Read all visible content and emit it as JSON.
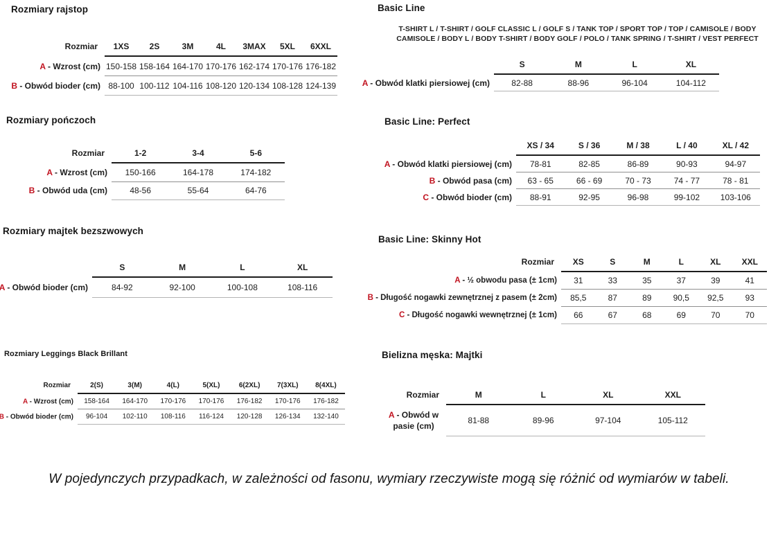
{
  "colors": {
    "accent_red": "#c11320"
  },
  "sections": {
    "rajstop": {
      "title": "Rozmiary rajstop",
      "table": {
        "corner": "Rozmiar",
        "columns": [
          "1XS",
          "2S",
          "3M",
          "4L",
          "3MAX",
          "5XL",
          "6XXL"
        ],
        "rows": [
          {
            "letter": "A",
            "label": "Wzrost (cm)",
            "values": [
              "150-158",
              "158-164",
              "164-170",
              "170-176",
              "162-174",
              "170-176",
              "176-182"
            ]
          },
          {
            "letter": "B",
            "label": "Obwód bioder (cm)",
            "values": [
              "88-100",
              "100-112",
              "104-116",
              "108-120",
              "120-134",
              "108-128",
              "124-139"
            ]
          }
        ]
      }
    },
    "ponczochy": {
      "title": "Rozmiary pończoch",
      "table": {
        "corner": "Rozmiar",
        "columns": [
          "1-2",
          "3-4",
          "5-6"
        ],
        "rows": [
          {
            "letter": "A",
            "label": "Wzrost (cm)",
            "values": [
              "150-166",
              "164-178",
              "174-182"
            ]
          },
          {
            "letter": "B",
            "label": "Obwód uda (cm)",
            "values": [
              "48-56",
              "55-64",
              "64-76"
            ]
          }
        ]
      }
    },
    "majtki_bezszwowe": {
      "title": "Rozmiary majtek bezszwowych",
      "table": {
        "corner": "",
        "columns": [
          "S",
          "M",
          "L",
          "XL"
        ],
        "rows": [
          {
            "letter": "A",
            "label": "Obwód bioder (cm)",
            "values": [
              "84-92",
              "92-100",
              "100-108",
              "108-116"
            ]
          }
        ]
      }
    },
    "leggings": {
      "title": "Rozmiary Leggings Black Brillant",
      "table": {
        "corner": "Rozmiar",
        "columns": [
          "2(S)",
          "3(M)",
          "4(L)",
          "5(XL)",
          "6(2XL)",
          "7(3XL)",
          "8(4XL)"
        ],
        "rows": [
          {
            "letter": "A",
            "label": "Wzrost (cm)",
            "values": [
              "158-164",
              "164-170",
              "170-176",
              "170-176",
              "176-182",
              "170-176",
              "176-182"
            ]
          },
          {
            "letter": "B",
            "label": "Obwód bioder (cm)",
            "values": [
              "96-104",
              "102-110",
              "108-116",
              "116-124",
              "120-128",
              "126-134",
              "132-140"
            ]
          }
        ]
      }
    },
    "basic_line": {
      "title": "Basic Line",
      "product_list_lines": [
        "T-SHIRT L / T-SHIRT / GOLF CLASSIC L / GOLF S / TANK TOP / SPORT TOP / TOP / CAMISOLE / BODY",
        "CAMISOLE / BODY L / BODY T-SHIRT / BODY GOLF / POLO / TANK SPRING / T-SHIRT / VEST PERFECT"
      ],
      "table": {
        "corner": "",
        "columns": [
          "S",
          "M",
          "L",
          "XL"
        ],
        "rows": [
          {
            "letter": "A",
            "label": "Obwód klatki piersiowej (cm)",
            "values": [
              "82-88",
              "88-96",
              "96-104",
              "104-112"
            ]
          }
        ]
      }
    },
    "basic_line_perfect": {
      "title": "Basic Line: Perfect",
      "table": {
        "corner": "",
        "columns": [
          "XS / 34",
          "S / 36",
          "M / 38",
          "L / 40",
          "XL / 42"
        ],
        "rows": [
          {
            "letter": "A",
            "label": "Obwód klatki piersiowej (cm)",
            "values": [
              "78-81",
              "82-85",
              "86-89",
              "90-93",
              "94-97"
            ]
          },
          {
            "letter": "B",
            "label": "Obwód pasa (cm)",
            "values": [
              "63 - 65",
              "66 - 69",
              "70 - 73",
              "74 - 77",
              "78 - 81"
            ]
          },
          {
            "letter": "C",
            "label": "Obwód bioder (cm)",
            "values": [
              "88-91",
              "92-95",
              "96-98",
              "99-102",
              "103-106"
            ]
          }
        ]
      }
    },
    "basic_line_skinny_hot": {
      "title": "Basic Line: Skinny Hot",
      "table": {
        "corner": "Rozmiar",
        "columns": [
          "XS",
          "S",
          "M",
          "L",
          "XL",
          "XXL"
        ],
        "rows": [
          {
            "letter": "A",
            "label": "½ obwodu pasa (± 1cm)",
            "values": [
              "31",
              "33",
              "35",
              "37",
              "39",
              "41"
            ]
          },
          {
            "letter": "B",
            "label": "Długość nogawki zewnętrznej z pasem (± 2cm)",
            "values": [
              "85,5",
              "87",
              "89",
              "90,5",
              "92,5",
              "93"
            ]
          },
          {
            "letter": "C",
            "label": "Długość nogawki wewnętrznej (± 1cm)",
            "values": [
              "66",
              "67",
              "68",
              "69",
              "70",
              "70"
            ]
          }
        ]
      }
    },
    "bielizna_meska": {
      "title": "Bielizna męska: Majtki",
      "table": {
        "corner": "Rozmiar",
        "columns": [
          "M",
          "L",
          "XL",
          "XXL"
        ],
        "rows": [
          {
            "letter": "A",
            "label": "Obwód w pasie (cm)",
            "values": [
              "81-88",
              "89-96",
              "97-104",
              "105-112"
            ]
          }
        ]
      }
    }
  },
  "page": {
    "note": "W pojedynczych przypadkach, w zależności od fasonu, wymiary rzeczywiste mogą się różnić od wymiarów w tabeli."
  }
}
